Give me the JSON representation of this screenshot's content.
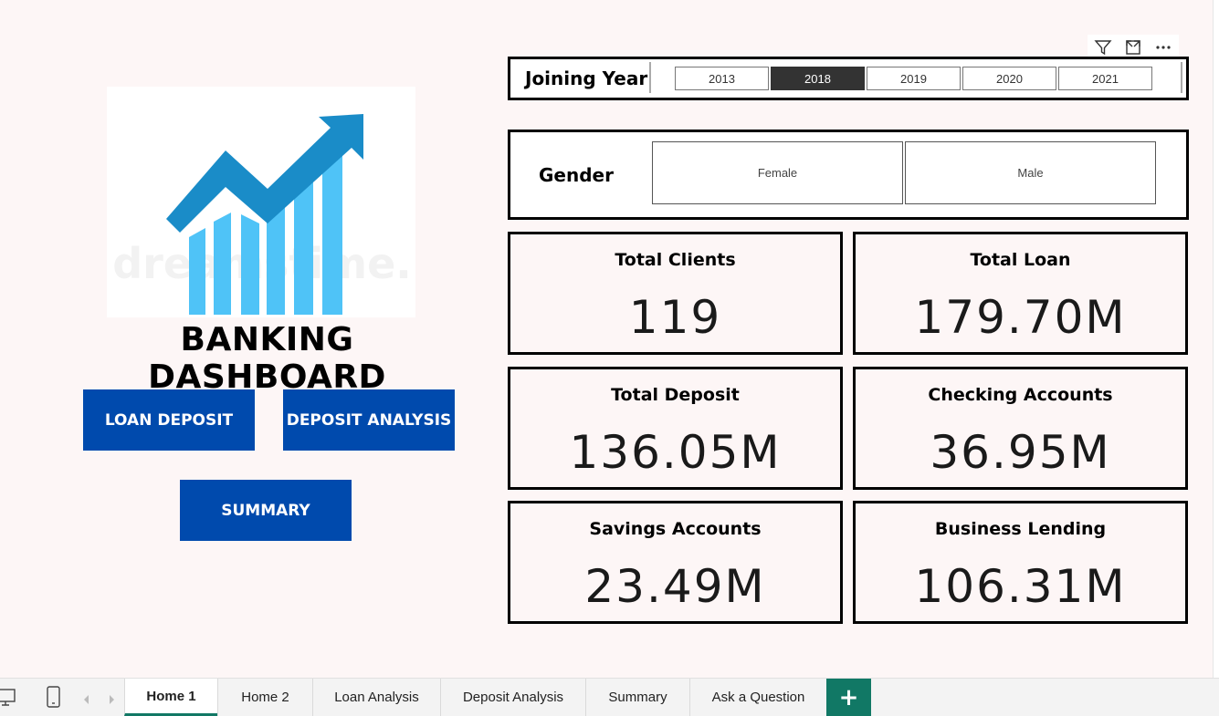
{
  "dashboard": {
    "title": "BANKING DASHBOARD",
    "logo_watermark": "dreamstime."
  },
  "nav_buttons": {
    "loan_deposit": "LOAN DEPOSIT",
    "deposit_analysis": "DEPOSIT ANALYSIS",
    "summary": "SUMMARY"
  },
  "visual_header": {
    "icons": [
      "filter-icon",
      "focus-mode-icon",
      "more-options-icon"
    ]
  },
  "joining_year_slicer": {
    "title": "Joining Year",
    "options": [
      "2013",
      "2018",
      "2019",
      "2020",
      "2021"
    ],
    "selected": "2018"
  },
  "gender_slicer": {
    "title": "Gender",
    "options": [
      "Female",
      "Male"
    ]
  },
  "kpis": [
    {
      "label": "Total Clients",
      "value": "119"
    },
    {
      "label": "Total Loan",
      "value": "179.70M"
    },
    {
      "label": "Total Deposit",
      "value": "136.05M"
    },
    {
      "label": "Checking Accounts",
      "value": "36.95M"
    },
    {
      "label": "Savings Accounts",
      "value": "23.49M"
    },
    {
      "label": "Business Lending",
      "value": "106.31M"
    }
  ],
  "page_tabs": {
    "tabs": [
      "Home 1",
      "Home 2",
      "Loan Analysis",
      "Deposit Analysis",
      "Summary",
      "Ask a Question"
    ],
    "active": "Home 1",
    "add_label": "+"
  },
  "colors": {
    "page_background": "#fdf6f6",
    "button_blue": "#004aad",
    "logo_blue": "#1a8cc8",
    "logo_light_blue": "#4fc3f7",
    "tab_accent": "#117865",
    "selected_slicer": "#333333"
  }
}
